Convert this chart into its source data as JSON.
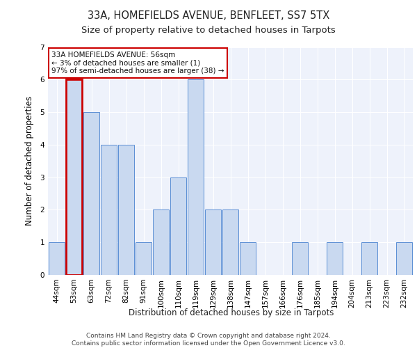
{
  "title_line1": "33A, HOMEFIELDS AVENUE, BENFLEET, SS7 5TX",
  "title_line2": "Size of property relative to detached houses in Tarpots",
  "xlabel": "Distribution of detached houses by size in Tarpots",
  "ylabel": "Number of detached properties",
  "categories": [
    "44sqm",
    "53sqm",
    "63sqm",
    "72sqm",
    "82sqm",
    "91sqm",
    "100sqm",
    "110sqm",
    "119sqm",
    "129sqm",
    "138sqm",
    "147sqm",
    "157sqm",
    "166sqm",
    "176sqm",
    "185sqm",
    "194sqm",
    "204sqm",
    "213sqm",
    "223sqm",
    "232sqm"
  ],
  "values": [
    1,
    6,
    5,
    4,
    4,
    1,
    2,
    3,
    6,
    2,
    2,
    1,
    0,
    0,
    1,
    0,
    1,
    0,
    1,
    0,
    1
  ],
  "highlight_index": 1,
  "bar_color": "#c9d9f0",
  "bar_edge_color": "#5b8fd4",
  "highlight_bar_color": "#c9d9f0",
  "highlight_bar_edge_color": "#cc0000",
  "annotation_box_text": "33A HOMEFIELDS AVENUE: 56sqm\n← 3% of detached houses are smaller (1)\n97% of semi-detached houses are larger (38) →",
  "ylim": [
    0,
    7
  ],
  "yticks": [
    0,
    1,
    2,
    3,
    4,
    5,
    6,
    7
  ],
  "background_color": "#eef2fb",
  "grid_color": "#ffffff",
  "footer_text": "Contains HM Land Registry data © Crown copyright and database right 2024.\nContains public sector information licensed under the Open Government Licence v3.0.",
  "title_fontsize": 10.5,
  "subtitle_fontsize": 9.5,
  "label_fontsize": 8.5,
  "tick_fontsize": 7.5,
  "annotation_fontsize": 7.5,
  "footer_fontsize": 6.5
}
